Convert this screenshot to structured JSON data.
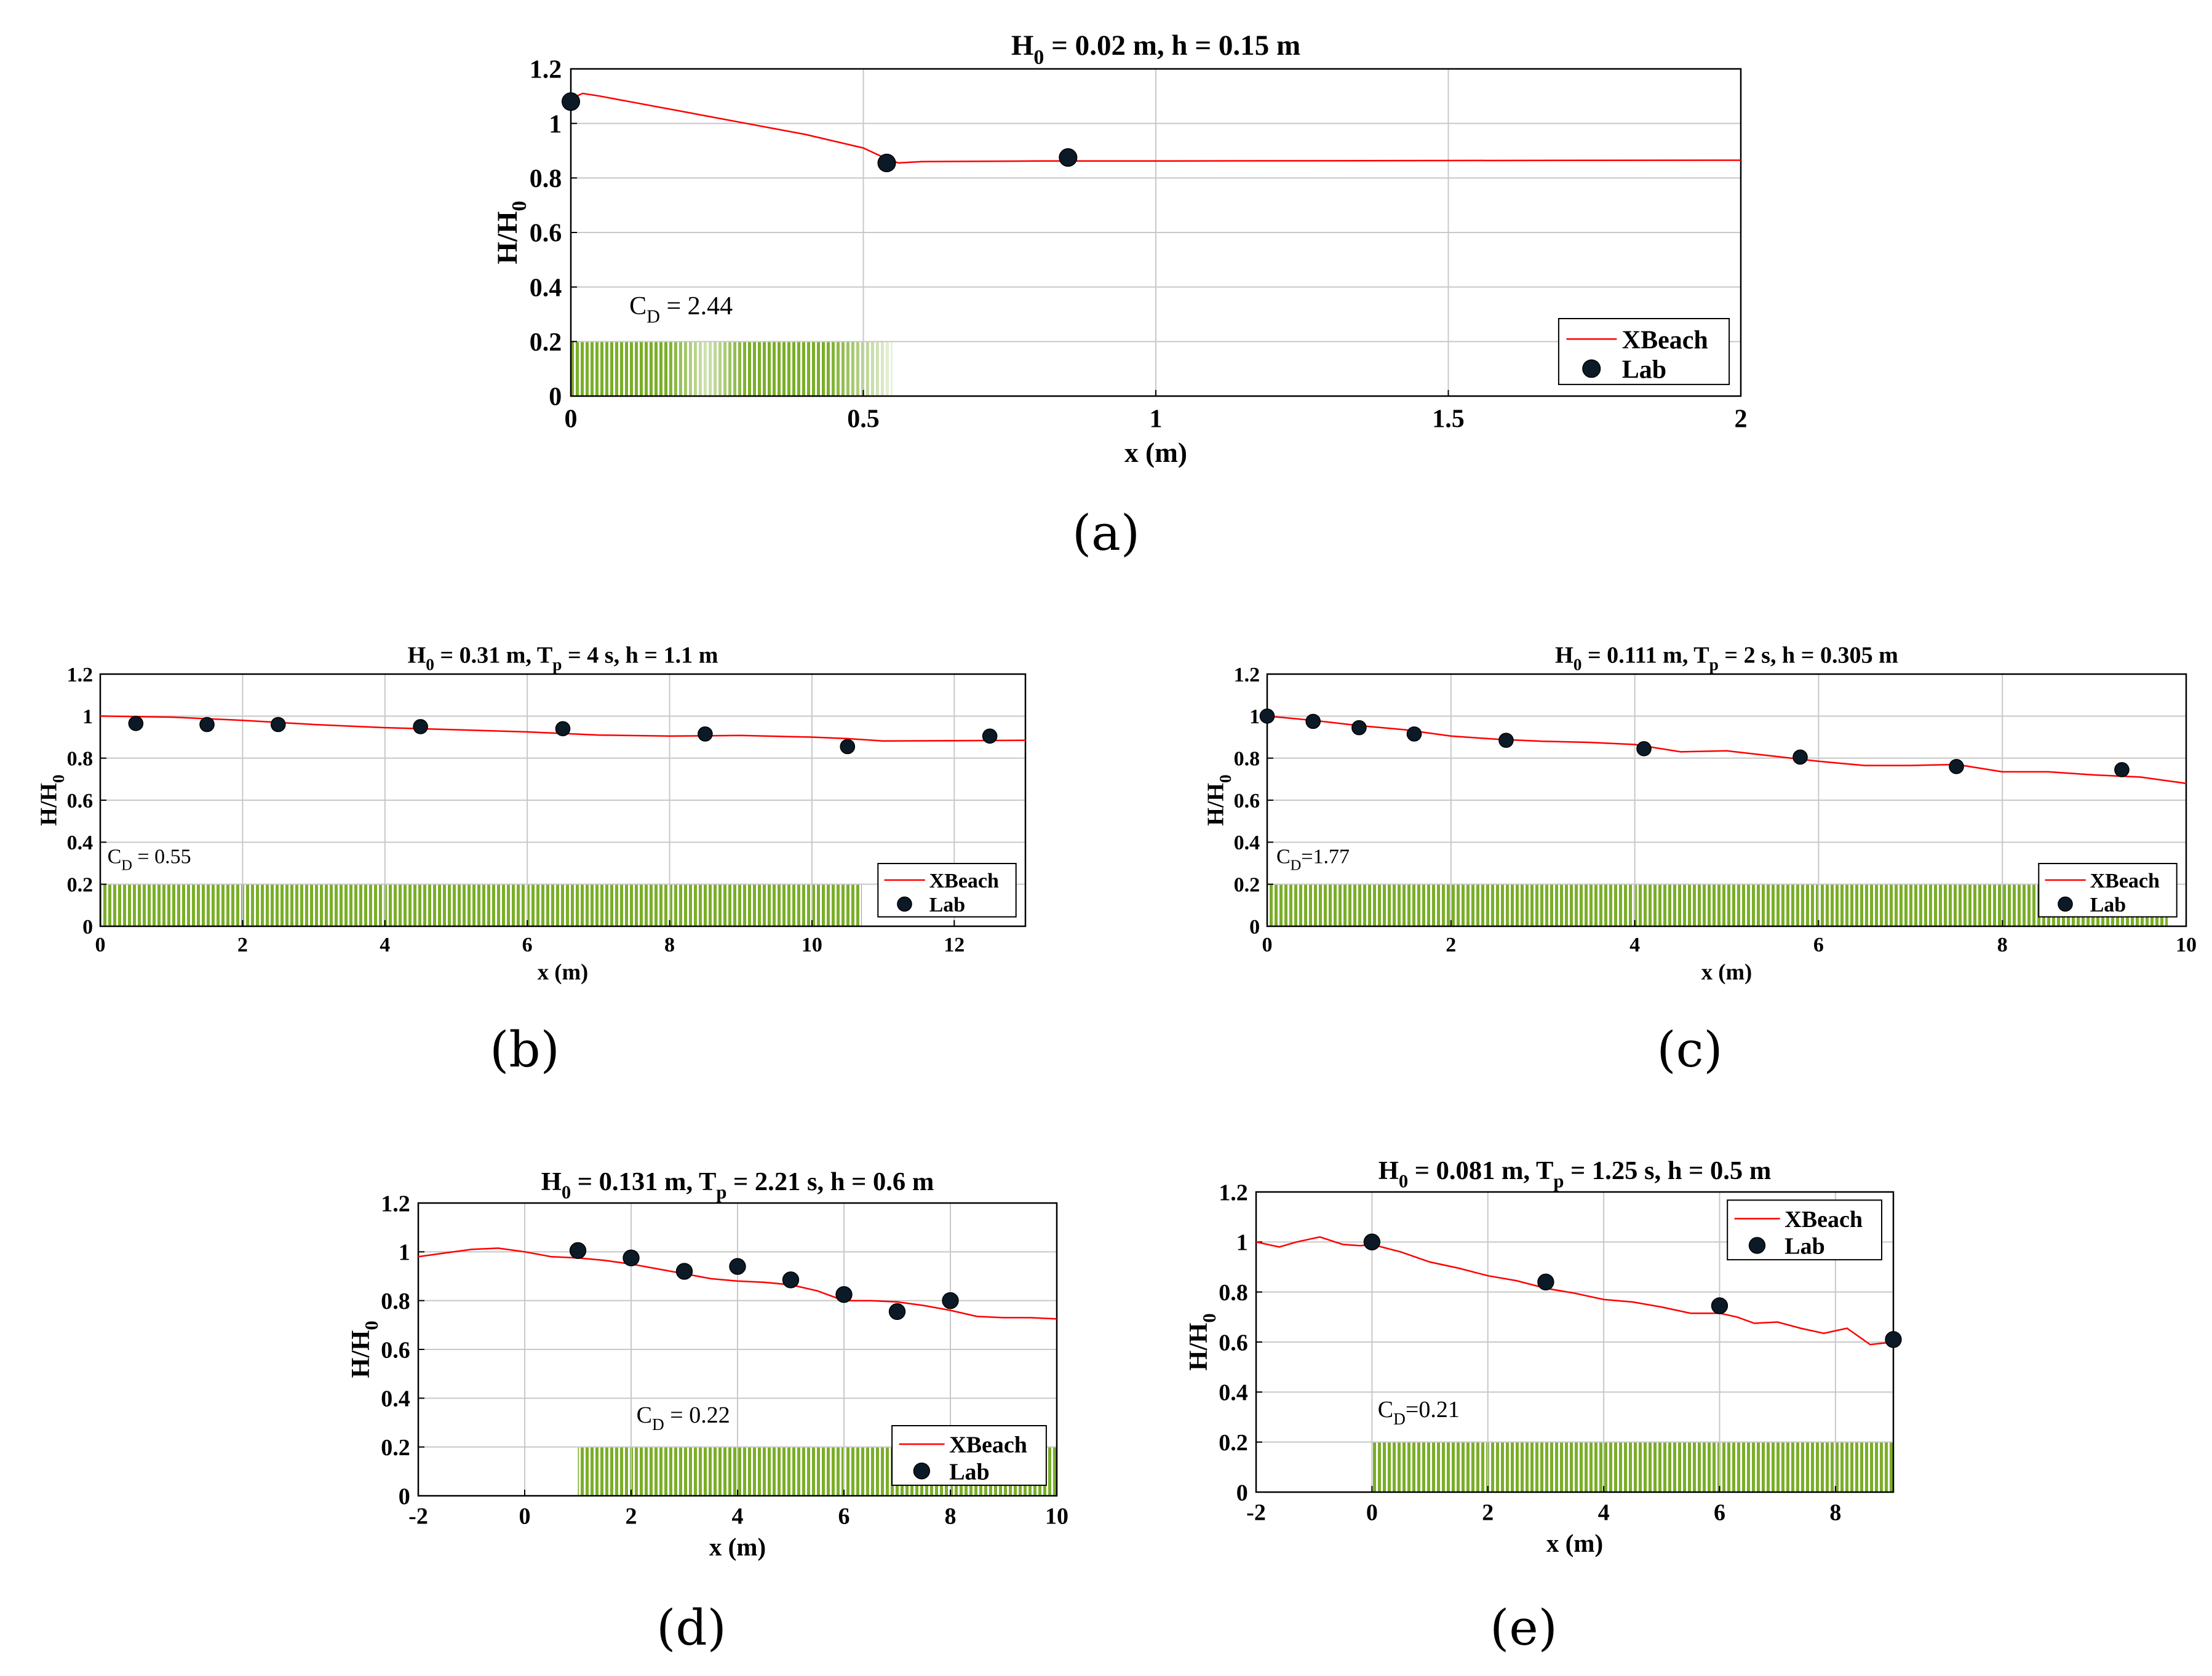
{
  "figure": {
    "captions": [
      "(a)",
      "(b)",
      "(c)",
      "(d)",
      "(e)"
    ]
  },
  "colors": {
    "xbeach_line": "#ff0000",
    "lab_marker_fill": "#0b1a26",
    "lab_marker_edge": "#000000",
    "vegetation": "#7aae28",
    "grid": "#c8c8c8",
    "axes": "#000000"
  },
  "chart_data": [
    {
      "id": "a",
      "type": "line",
      "title": {
        "pre": "H",
        "sub": "0",
        "post": " = 0.02 m, h = 0.15 m"
      },
      "xlabel": "x (m)",
      "ylabel": {
        "main": "H/H",
        "sub": "0"
      },
      "xlim": [
        0,
        2
      ],
      "ylim": [
        0,
        1.2
      ],
      "xticks": [
        0,
        0.5,
        1,
        1.5,
        2
      ],
      "xtick_labels": [
        "0",
        "0.5",
        "1",
        "1.5",
        "2"
      ],
      "yticks": [
        0,
        0.2,
        0.4,
        0.6,
        0.8,
        1,
        1.2
      ],
      "ytick_labels": [
        "0",
        "0.2",
        "0.4",
        "0.6",
        "0.8",
        "1",
        "1.2"
      ],
      "grid": true,
      "legend_position": "bottom-right",
      "vegetation": {
        "x_start": 0,
        "x_end": 0.55,
        "height": 0.2,
        "faded": true
      },
      "cd_label": {
        "main": "C",
        "sub": "D",
        "post": " = 2.44",
        "x": 0.1,
        "y": 0.3
      },
      "series": [
        {
          "name": "XBeach",
          "type": "line",
          "x": [
            0,
            0.02,
            0.05,
            0.1,
            0.2,
            0.3,
            0.4,
            0.5,
            0.54,
            0.56,
            0.6,
            0.8,
            1.0,
            1.5,
            2.0
          ],
          "y": [
            1.09,
            1.11,
            1.1,
            1.08,
            1.04,
            1.0,
            0.96,
            0.91,
            0.87,
            0.855,
            0.86,
            0.862,
            0.862,
            0.864,
            0.865
          ]
        },
        {
          "name": "Lab",
          "type": "scatter",
          "x": [
            0,
            0.54,
            0.85
          ],
          "y": [
            1.08,
            0.855,
            0.875
          ]
        }
      ]
    },
    {
      "id": "b",
      "type": "line",
      "title": {
        "pre": "H",
        "sub": "0",
        "mid": " = 0.31 m, T",
        "sub2": "p",
        "post": " = 4 s, h = 1.1 m"
      },
      "xlabel": "x (m)",
      "ylabel": {
        "main": "H/H",
        "sub": "0"
      },
      "xlim": [
        0,
        13
      ],
      "ylim": [
        0,
        1.2
      ],
      "xticks": [
        0,
        2,
        4,
        6,
        8,
        10,
        12
      ],
      "xtick_labels": [
        "0",
        "2",
        "4",
        "6",
        "8",
        "10",
        "12"
      ],
      "yticks": [
        0,
        0.2,
        0.4,
        0.6,
        0.8,
        1,
        1.2
      ],
      "ytick_labels": [
        "0",
        "0.2",
        "0.4",
        "0.6",
        "0.8",
        "1",
        "1.2"
      ],
      "grid": true,
      "legend_position": "bottom-right",
      "vegetation": {
        "x_start": 0,
        "x_end": 10.7,
        "height": 0.2,
        "faded": false
      },
      "cd_label": {
        "main": "C",
        "sub": "D",
        "post": " = 0.55",
        "x": 0.1,
        "y": 0.3
      },
      "series": [
        {
          "name": "XBeach",
          "type": "line",
          "x": [
            0,
            1,
            2,
            3,
            4,
            5,
            6,
            7,
            8,
            9,
            10,
            10.5,
            11,
            12,
            13
          ],
          "y": [
            1.0,
            0.995,
            0.98,
            0.96,
            0.945,
            0.935,
            0.925,
            0.91,
            0.905,
            0.908,
            0.9,
            0.893,
            0.882,
            0.883,
            0.885
          ]
        },
        {
          "name": "Lab",
          "type": "scatter",
          "x": [
            0.5,
            1.5,
            2.5,
            4.5,
            6.5,
            8.5,
            10.5,
            12.5
          ],
          "y": [
            0.965,
            0.96,
            0.96,
            0.95,
            0.94,
            0.915,
            0.855,
            0.905
          ]
        }
      ]
    },
    {
      "id": "c",
      "type": "line",
      "title": {
        "pre": "H",
        "sub": "0",
        "mid": " = 0.111 m, T",
        "sub2": "p",
        "post": " = 2 s, h = 0.305 m"
      },
      "xlabel": "x (m)",
      "ylabel": {
        "main": "H/H",
        "sub": "0"
      },
      "xlim": [
        0,
        10
      ],
      "ylim": [
        0,
        1.2
      ],
      "xticks": [
        0,
        2,
        4,
        6,
        8,
        10
      ],
      "xtick_labels": [
        "0",
        "2",
        "4",
        "6",
        "8",
        "10"
      ],
      "yticks": [
        0,
        0.2,
        0.4,
        0.6,
        0.8,
        1,
        1.2
      ],
      "ytick_labels": [
        "0",
        "0.2",
        "0.4",
        "0.6",
        "0.8",
        "1",
        "1.2"
      ],
      "grid": true,
      "legend_position": "bottom-right",
      "vegetation": {
        "x_start": 0,
        "x_end": 9.8,
        "height": 0.2,
        "faded": false
      },
      "cd_label": {
        "main": "C",
        "sub": "D",
        "post": "=1.77",
        "x": 0.1,
        "y": 0.3
      },
      "series": [
        {
          "name": "XBeach",
          "type": "line",
          "x": [
            0,
            0.5,
            1,
            1.5,
            2,
            2.5,
            3,
            3.5,
            4,
            4.5,
            5,
            5.5,
            6,
            6.5,
            7,
            7.5,
            8,
            8.5,
            9,
            9.5,
            10
          ],
          "y": [
            1.0,
            0.98,
            0.955,
            0.935,
            0.905,
            0.89,
            0.88,
            0.875,
            0.865,
            0.83,
            0.835,
            0.81,
            0.785,
            0.765,
            0.765,
            0.77,
            0.735,
            0.735,
            0.72,
            0.71,
            0.68
          ]
        },
        {
          "name": "Lab",
          "type": "scatter",
          "x": [
            0,
            0.5,
            1,
            1.6,
            2.6,
            4.1,
            5.8,
            7.5,
            9.3
          ],
          "y": [
            1.0,
            0.975,
            0.945,
            0.915,
            0.885,
            0.845,
            0.805,
            0.76,
            0.745
          ]
        }
      ]
    },
    {
      "id": "d",
      "type": "line",
      "title": {
        "pre": "H",
        "sub": "0",
        "mid": " = 0.131 m, T",
        "sub2": "p",
        "post": " = 2.21 s, h = 0.6 m"
      },
      "xlabel": "x (m)",
      "ylabel": {
        "main": "H/H",
        "sub": "0"
      },
      "xlim": [
        -2,
        10
      ],
      "ylim": [
        0,
        1.2
      ],
      "xticks": [
        -2,
        0,
        2,
        4,
        6,
        8,
        10
      ],
      "xtick_labels": [
        "-2",
        "0",
        "2",
        "4",
        "6",
        "8",
        "10"
      ],
      "yticks": [
        0,
        0.2,
        0.4,
        0.6,
        0.8,
        1,
        1.2
      ],
      "ytick_labels": [
        "0",
        "0.2",
        "0.4",
        "0.6",
        "0.8",
        "1",
        "1.2"
      ],
      "grid": true,
      "legend_position": "bottom-right",
      "vegetation": {
        "x_start": 1,
        "x_end": 10,
        "height": 0.2,
        "faded": false
      },
      "cd_label": {
        "main": "C",
        "sub": "D",
        "post": " = 0.22",
        "x": 2.1,
        "y": 0.3
      },
      "series": [
        {
          "name": "XBeach",
          "type": "line",
          "x": [
            -2,
            -1.5,
            -1,
            -0.5,
            0,
            0.5,
            1,
            1.5,
            2,
            2.5,
            3,
            3.5,
            4,
            4.5,
            5,
            5.5,
            6,
            6.5,
            7,
            7.5,
            8,
            8.5,
            9,
            9.5,
            10
          ],
          "y": [
            0.98,
            0.995,
            1.01,
            1.015,
            1.0,
            0.98,
            0.975,
            0.965,
            0.95,
            0.93,
            0.91,
            0.89,
            0.88,
            0.875,
            0.865,
            0.84,
            0.8,
            0.8,
            0.795,
            0.78,
            0.76,
            0.735,
            0.73,
            0.73,
            0.725
          ]
        },
        {
          "name": "Lab",
          "type": "scatter",
          "x": [
            1,
            2,
            3,
            4,
            5,
            6,
            7,
            8
          ],
          "y": [
            1.005,
            0.975,
            0.92,
            0.94,
            0.885,
            0.825,
            0.755,
            0.8
          ]
        }
      ]
    },
    {
      "id": "e",
      "type": "line",
      "title": {
        "pre": "H",
        "sub": "0",
        "mid": " = 0.081 m, T",
        "sub2": "p",
        "post": " = 1.25 s, h = 0.5 m"
      },
      "xlabel": "x (m)",
      "ylabel": {
        "main": "H/H",
        "sub": "0"
      },
      "xlim": [
        -2,
        9
      ],
      "ylim": [
        0,
        1.2
      ],
      "xticks": [
        -2,
        0,
        2,
        4,
        6,
        8
      ],
      "xtick_labels": [
        "-2",
        "0",
        "2",
        "4",
        "6",
        "8"
      ],
      "yticks": [
        0,
        0.2,
        0.4,
        0.6,
        0.8,
        1,
        1.2
      ],
      "ytick_labels": [
        "0",
        "0.2",
        "0.4",
        "0.6",
        "0.8",
        "1",
        "1.2"
      ],
      "grid": true,
      "legend_position": "top-right",
      "vegetation": {
        "x_start": 0,
        "x_end": 9,
        "height": 0.2,
        "faded": false
      },
      "cd_label": {
        "main": "C",
        "sub": "D",
        "post": "=0.21",
        "x": 0.1,
        "y": 0.3
      },
      "series": [
        {
          "name": "XBeach",
          "type": "line",
          "x": [
            -2,
            -1.6,
            -1.3,
            -0.9,
            -0.5,
            -0.2,
            0,
            0.5,
            1,
            1.5,
            2,
            2.5,
            3,
            3.5,
            4,
            4.5,
            5,
            5.5,
            6,
            6.3,
            6.6,
            7,
            7.4,
            7.8,
            8.2,
            8.6,
            9
          ],
          "y": [
            1.0,
            0.98,
            1.0,
            1.02,
            0.99,
            0.985,
            0.99,
            0.96,
            0.92,
            0.895,
            0.865,
            0.845,
            0.815,
            0.795,
            0.77,
            0.76,
            0.74,
            0.715,
            0.715,
            0.7,
            0.675,
            0.68,
            0.655,
            0.635,
            0.655,
            0.59,
            0.6
          ]
        },
        {
          "name": "Lab",
          "type": "scatter",
          "x": [
            0,
            3,
            6,
            9
          ],
          "y": [
            1.0,
            0.84,
            0.745,
            0.61
          ]
        }
      ]
    }
  ]
}
